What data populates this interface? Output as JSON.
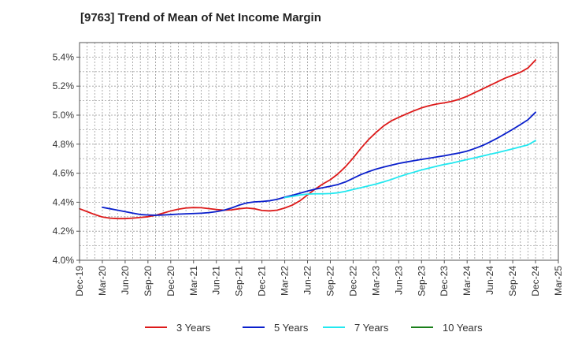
{
  "chart_data": {
    "type": "line",
    "title": "[9763]  Trend of Mean of Net Income Margin",
    "xlabel": "",
    "ylabel": "",
    "ylim": [
      4.0,
      5.5
    ],
    "y_ticks": [
      "4.0%",
      "4.2%",
      "4.4%",
      "4.6%",
      "4.8%",
      "5.0%",
      "5.2%",
      "5.4%"
    ],
    "y_tick_values": [
      4.0,
      4.2,
      4.4,
      4.6,
      4.8,
      5.0,
      5.2,
      5.4
    ],
    "x_ticks": [
      "Dec-19",
      "Mar-20",
      "Jun-20",
      "Sep-20",
      "Dec-20",
      "Mar-21",
      "Jun-21",
      "Sep-21",
      "Dec-21",
      "Mar-22",
      "Jun-22",
      "Sep-22",
      "Dec-22",
      "Mar-23",
      "Jun-23",
      "Sep-23",
      "Dec-23",
      "Mar-24",
      "Jun-24",
      "Sep-24",
      "Dec-24",
      "Mar-25"
    ],
    "grid": true,
    "legend_position": "bottom",
    "series": [
      {
        "name": "3 Years",
        "color": "#dd1a1a",
        "x": [
          "Dec-19",
          "Jan-20",
          "Feb-20",
          "Mar-20",
          "Apr-20",
          "May-20",
          "Jun-20",
          "Jul-20",
          "Aug-20",
          "Sep-20",
          "Oct-20",
          "Nov-20",
          "Dec-20",
          "Jan-21",
          "Feb-21",
          "Mar-21",
          "Apr-21",
          "May-21",
          "Jun-21",
          "Jul-21",
          "Aug-21",
          "Sep-21",
          "Oct-21",
          "Nov-21",
          "Dec-21",
          "Jan-22",
          "Feb-22",
          "Mar-22",
          "Apr-22",
          "May-22",
          "Jun-22",
          "Jul-22",
          "Aug-22",
          "Sep-22",
          "Oct-22",
          "Nov-22",
          "Dec-22",
          "Jan-23",
          "Feb-23",
          "Mar-23",
          "Apr-23",
          "May-23",
          "Jun-23",
          "Jul-23",
          "Aug-23",
          "Sep-23",
          "Oct-23",
          "Nov-23",
          "Dec-23",
          "Jan-24",
          "Feb-24",
          "Mar-24",
          "Apr-24",
          "May-24",
          "Jun-24",
          "Jul-24",
          "Aug-24",
          "Sep-24",
          "Oct-24",
          "Nov-24",
          "Dec-24"
        ],
        "values": [
          4.355,
          4.335,
          4.315,
          4.298,
          4.29,
          4.287,
          4.287,
          4.29,
          4.295,
          4.3,
          4.31,
          4.325,
          4.34,
          4.352,
          4.36,
          4.363,
          4.362,
          4.356,
          4.35,
          4.345,
          4.347,
          4.355,
          4.36,
          4.355,
          4.343,
          4.34,
          4.345,
          4.36,
          4.38,
          4.41,
          4.45,
          4.49,
          4.525,
          4.555,
          4.595,
          4.645,
          4.705,
          4.77,
          4.83,
          4.88,
          4.925,
          4.96,
          4.985,
          5.008,
          5.03,
          5.05,
          5.065,
          5.077,
          5.085,
          5.095,
          5.11,
          5.13,
          5.155,
          5.18,
          5.205,
          5.23,
          5.255,
          5.275,
          5.295,
          5.325,
          5.38
        ]
      },
      {
        "name": "5 Years",
        "color": "#0a1fcc",
        "x": [
          "Mar-20",
          "Apr-20",
          "May-20",
          "Jun-20",
          "Jul-20",
          "Aug-20",
          "Sep-20",
          "Oct-20",
          "Nov-20",
          "Dec-20",
          "Jan-21",
          "Feb-21",
          "Mar-21",
          "Apr-21",
          "May-21",
          "Jun-21",
          "Jul-21",
          "Aug-21",
          "Sep-21",
          "Oct-21",
          "Nov-21",
          "Dec-21",
          "Jan-22",
          "Feb-22",
          "Mar-22",
          "Apr-22",
          "May-22",
          "Jun-22",
          "Jul-22",
          "Aug-22",
          "Sep-22",
          "Oct-22",
          "Nov-22",
          "Dec-22",
          "Jan-23",
          "Feb-23",
          "Mar-23",
          "Apr-23",
          "May-23",
          "Jun-23",
          "Jul-23",
          "Aug-23",
          "Sep-23",
          "Oct-23",
          "Nov-23",
          "Dec-23",
          "Jan-24",
          "Feb-24",
          "Mar-24",
          "Apr-24",
          "May-24",
          "Jun-24",
          "Jul-24",
          "Aug-24",
          "Sep-24",
          "Oct-24",
          "Nov-24",
          "Dec-24"
        ],
        "values": [
          4.365,
          4.355,
          4.345,
          4.335,
          4.325,
          4.315,
          4.312,
          4.31,
          4.312,
          4.315,
          4.318,
          4.32,
          4.322,
          4.324,
          4.328,
          4.335,
          4.345,
          4.36,
          4.38,
          4.395,
          4.402,
          4.405,
          4.41,
          4.42,
          4.435,
          4.448,
          4.462,
          4.477,
          4.49,
          4.5,
          4.51,
          4.522,
          4.54,
          4.565,
          4.59,
          4.61,
          4.628,
          4.642,
          4.655,
          4.667,
          4.677,
          4.686,
          4.695,
          4.703,
          4.712,
          4.72,
          4.73,
          4.74,
          4.752,
          4.77,
          4.79,
          4.815,
          4.842,
          4.872,
          4.902,
          4.935,
          4.968,
          5.02
        ]
      },
      {
        "name": "7 Years",
        "color": "#22e8f0",
        "x": [
          "Mar-22",
          "Apr-22",
          "May-22",
          "Jun-22",
          "Jul-22",
          "Aug-22",
          "Sep-22",
          "Oct-22",
          "Nov-22",
          "Dec-22",
          "Jan-23",
          "Feb-23",
          "Mar-23",
          "Apr-23",
          "May-23",
          "Jun-23",
          "Jul-23",
          "Aug-23",
          "Sep-23",
          "Oct-23",
          "Nov-23",
          "Dec-23",
          "Jan-24",
          "Feb-24",
          "Mar-24",
          "Apr-24",
          "May-24",
          "Jun-24",
          "Jul-24",
          "Aug-24",
          "Sep-24",
          "Oct-24",
          "Nov-24",
          "Dec-24"
        ],
        "values": [
          4.432,
          4.44,
          4.45,
          4.456,
          4.458,
          4.458,
          4.46,
          4.465,
          4.475,
          4.488,
          4.5,
          4.512,
          4.525,
          4.54,
          4.556,
          4.575,
          4.592,
          4.607,
          4.622,
          4.635,
          4.648,
          4.66,
          4.67,
          4.682,
          4.694,
          4.706,
          4.718,
          4.73,
          4.742,
          4.755,
          4.768,
          4.782,
          4.795,
          4.825
        ]
      },
      {
        "name": "10 Years",
        "color": "#1a7f1a",
        "x": [],
        "values": []
      }
    ]
  }
}
